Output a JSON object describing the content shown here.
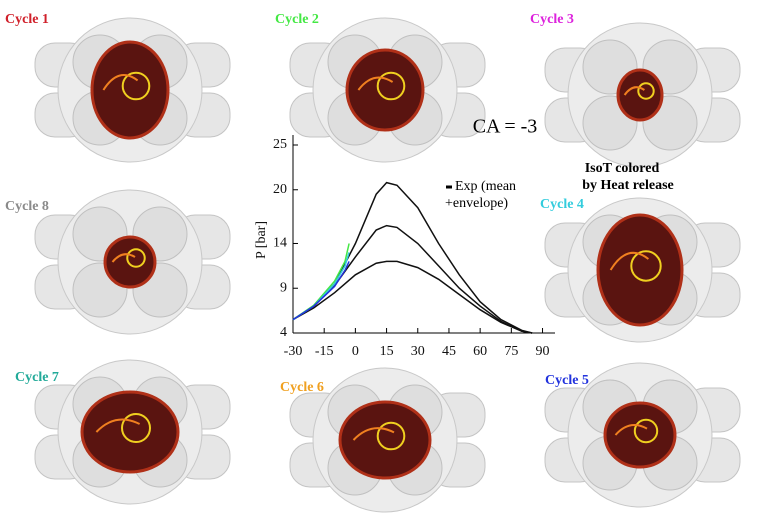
{
  "panels": [
    {
      "label": "Cycle 1",
      "color": "#d0202a"
    },
    {
      "label": "Cycle 2",
      "color": "#44e844"
    },
    {
      "label": "Cycle 3",
      "color": "#dd22dd"
    },
    {
      "label": "Cycle 8",
      "color": "#8a8a8a"
    },
    {
      "label": "Cycle 4",
      "color": "#33ccdd"
    },
    {
      "label": "Cycle 7",
      "color": "#22aa99"
    },
    {
      "label": "Cycle 6",
      "color": "#f0a020"
    },
    {
      "label": "Cycle 5",
      "color": "#2233dd"
    }
  ],
  "annotations": {
    "crank_angle": "CA = -3",
    "iso_note": [
      "IsoT colored",
      "by Heat release"
    ],
    "legend": [
      "Exp (mean",
      "+envelope)"
    ]
  },
  "chart_data": {
    "type": "line",
    "ylabel": "P [bar]",
    "xlim": [
      -30,
      96
    ],
    "xticks": [
      -30,
      -15,
      0,
      15,
      30,
      45,
      60,
      75,
      90
    ],
    "ylim": [
      4,
      25
    ],
    "yticks": [
      4,
      9,
      14,
      20,
      25
    ],
    "series": [
      {
        "color": "#111111",
        "x": [
          -30,
          -20,
          -10,
          0,
          10,
          15,
          20,
          30,
          40,
          50,
          60,
          70,
          80,
          85
        ],
        "values": [
          5.5,
          7,
          9.5,
          14,
          19.5,
          20.8,
          20.5,
          18,
          14,
          10.5,
          7.5,
          5.5,
          4.3,
          4
        ]
      },
      {
        "color": "#111111",
        "x": [
          -30,
          -20,
          -10,
          0,
          10,
          15,
          20,
          30,
          40,
          50,
          60,
          70,
          80,
          85
        ],
        "values": [
          5.5,
          7,
          9.3,
          12.5,
          15.5,
          16,
          15.8,
          14,
          11.5,
          9,
          7,
          5.3,
          4.2,
          4
        ]
      },
      {
        "color": "#111111",
        "x": [
          -30,
          -20,
          -10,
          0,
          10,
          15,
          20,
          30,
          40,
          50,
          60,
          70,
          80,
          85
        ],
        "values": [
          5.5,
          6.8,
          8.5,
          10.5,
          11.8,
          12,
          12,
          11.3,
          10,
          8.3,
          6.6,
          5.2,
          4.2,
          4
        ]
      },
      {
        "color": "#44e844",
        "x": [
          -30,
          -20,
          -10,
          -5,
          -3
        ],
        "values": [
          5.5,
          7.1,
          9.8,
          12,
          14
        ]
      },
      {
        "color": "#33ccdd",
        "x": [
          -30,
          -20,
          -10,
          -5,
          -3
        ],
        "values": [
          5.5,
          7,
          9.5,
          11.5,
          13
        ]
      },
      {
        "color": "#2233dd",
        "x": [
          -30,
          -20,
          -10,
          -5,
          -3
        ],
        "values": [
          5.5,
          7,
          9.2,
          11,
          12
        ]
      }
    ]
  }
}
